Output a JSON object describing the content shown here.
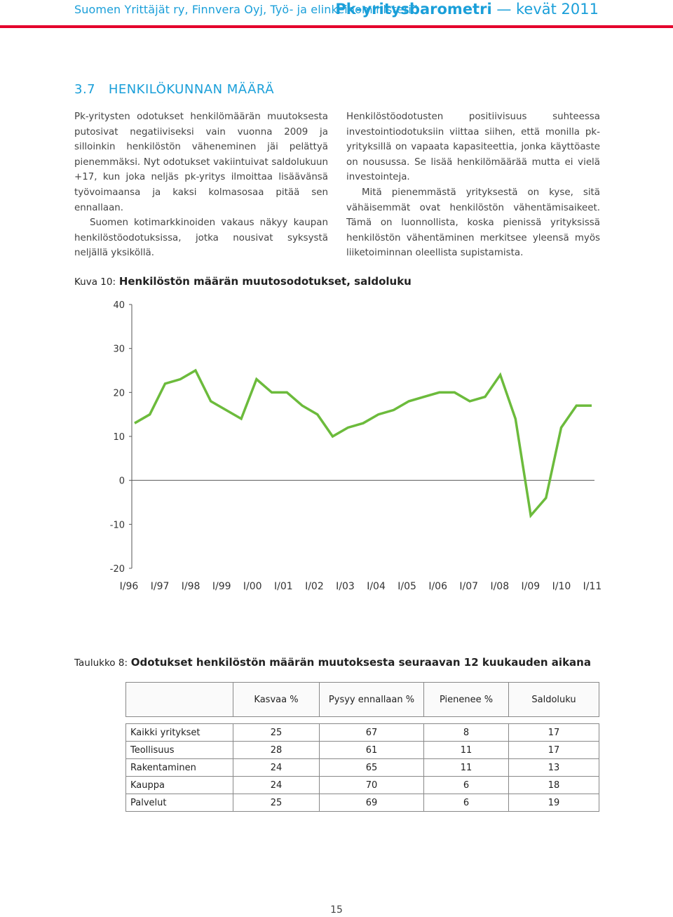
{
  "header": {
    "left": "Suomen Yrittäjät ry, Finnvera Oyj, Työ- ja elinkeinoministeriö",
    "right_brand": "Pk-yritysbarometri",
    "right_dash": " — ",
    "right_season": "kevät 2011"
  },
  "section": {
    "number": "3.7",
    "title": "HENKILÖKUNNAN MÄÄRÄ"
  },
  "body": {
    "left_p1": "Pk-yritysten odotukset henkilömäärän muutoksesta putosivat negatiiviseksi vain vuonna 2009 ja silloinkin henkilöstön väheneminen jäi pelättyä pienemmäksi. Nyt odotukset vakiintuivat saldolukuun +17, kun joka neljäs pk-yritys ilmoittaa lisäävänsä työvoimaansa ja kaksi kolmasosaa pitää sen ennallaan.",
    "left_p2": "Suomen kotimarkkinoiden vakaus näkyy kaupan henkilöstöodotuksissa, jotka nousivat syksystä neljällä yksiköllä.",
    "right_p1": "Henkilöstöodotusten positiivisuus suhteessa investointiodotuksiin viittaa siihen, että monilla pk-yrityksillä on vapaata kapasiteettia, jonka käyttöaste on nousussa. Se lisää henkilömäärää mutta ei vielä investointeja.",
    "right_p2": "Mitä pienemmästä yrityksestä on kyse, sitä vähäisemmät ovat henkilöstön vähentämisaikeet. Tämä on luonnollista, koska pienissä yrityksissä henkilöstön vähentäminen merkitsee yleensä myös liiketoiminnan oleellista supistamista."
  },
  "figure": {
    "label": "Kuva 10:",
    "title": "Henkilöstön määrän muutosodotukset, saldoluku"
  },
  "chart_data": {
    "type": "line",
    "title": "Henkilöstön määrän muutosodotukset, saldoluku",
    "xlabel": "",
    "ylabel": "",
    "ylim": [
      -20,
      40
    ],
    "yticks": [
      40,
      30,
      20,
      10,
      0,
      -10,
      -20
    ],
    "xticks": [
      "I/96",
      "I/97",
      "I/98",
      "I/99",
      "I/00",
      "I/01",
      "I/02",
      "I/03",
      "I/04",
      "I/05",
      "I/06",
      "I/07",
      "I/08",
      "I/09",
      "I/10",
      "I/11"
    ],
    "color": "#6cbb3c",
    "grid": false,
    "series": [
      {
        "values": [
          13,
          15,
          22,
          23,
          25,
          18,
          16,
          14,
          23,
          20,
          20,
          17,
          15,
          10,
          12,
          13,
          15,
          16,
          18,
          19,
          20,
          20,
          18,
          19,
          24,
          14,
          -8,
          -4,
          12,
          17,
          17
        ]
      }
    ]
  },
  "table_caption": {
    "label": "Taulukko 8:",
    "title": "Odotukset henkilöstön määrän muutoksesta seuraavan 12 kuukauden aikana"
  },
  "table": {
    "headers": [
      "",
      "Kasvaa %",
      "Pysyy ennallaan %",
      "Pienenee %",
      "Saldoluku"
    ],
    "rows": [
      [
        "Kaikki yritykset",
        "25",
        "67",
        "8",
        "17"
      ],
      [
        "Teollisuus",
        "28",
        "61",
        "11",
        "17"
      ],
      [
        "Rakentaminen",
        "24",
        "65",
        "11",
        "13"
      ],
      [
        "Kauppa",
        "24",
        "70",
        "6",
        "18"
      ],
      [
        "Palvelut",
        "25",
        "69",
        "6",
        "19"
      ]
    ]
  },
  "page_number": "15"
}
